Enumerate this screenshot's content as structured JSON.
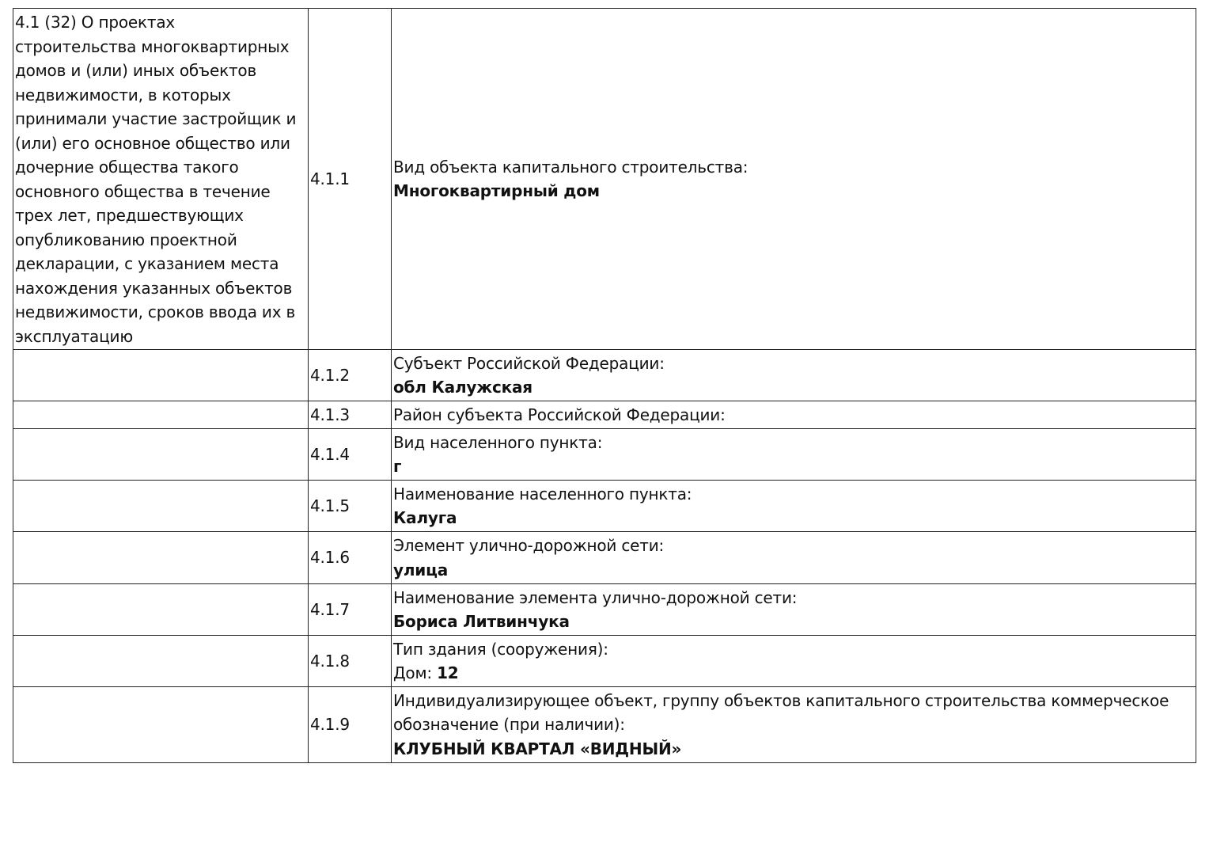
{
  "section_title_lines": [
    "4.1 (32) О проектах",
    "строительства многоквартирных",
    "домов и (или) иных объектов",
    "недвижимости, в которых",
    "принимали участие застройщик и",
    "(или) его основное общество или",
    "дочерние общества такого",
    "основного общества в течение",
    "трех лет, предшествующих",
    "опубликованию проектной",
    "декларации, с указанием места",
    "нахождения указанных объектов",
    "недвижимости, сроков ввода их в",
    "эксплуатацию"
  ],
  "rows": [
    {
      "num": "4.1.1",
      "label": "Вид объекта капитального строительства:",
      "value": "Многоквартирный дом"
    },
    {
      "num": "4.1.2",
      "label": "Субъект Российской Федерации:",
      "value": "обл Калужская"
    },
    {
      "num": "4.1.3",
      "label": "Район субъекта Российской Федерации:",
      "value": ""
    },
    {
      "num": "4.1.4",
      "label": "Вид населенного пункта:",
      "value": "г"
    },
    {
      "num": "4.1.5",
      "label": "Наименование населенного пункта:",
      "value": "Калуга"
    },
    {
      "num": "4.1.6",
      "label": "Элемент улично-дорожной сети:",
      "value": "улица"
    },
    {
      "num": "4.1.7",
      "label": "Наименование элемента улично-дорожной сети:",
      "value": "Бориса Литвинчука"
    },
    {
      "num": "4.1.8",
      "label": "Тип здания (сооружения):",
      "value_prefix": "Дом:",
      "value": "12"
    },
    {
      "num": "4.1.9",
      "label_lines": [
        "Индивидуализирующее объект, группу объектов капитального строительства коммерческое",
        "обозначение (при наличии):"
      ],
      "value": "КЛУБНЫЙ КВАРТАЛ «ВИДНЫЙ»"
    }
  ]
}
